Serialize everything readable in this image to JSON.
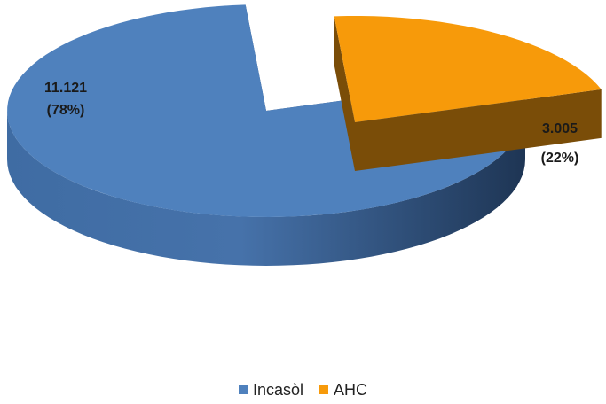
{
  "chart_data": {
    "type": "pie",
    "variant": "3d-exploded",
    "title": "",
    "slices": [
      {
        "name": "Incasòl",
        "value": 11121,
        "percent": 78,
        "label_value": "11.121",
        "label_percent": "(78%)",
        "color": "#4F81BD",
        "shade": "#2B4468"
      },
      {
        "name": "AHC",
        "value": 3005,
        "percent": 22,
        "label_value": "3.005",
        "label_percent": "(22%)",
        "color": "#F79A0A",
        "shade": "#7A4D08"
      }
    ],
    "legend_position": "bottom"
  }
}
